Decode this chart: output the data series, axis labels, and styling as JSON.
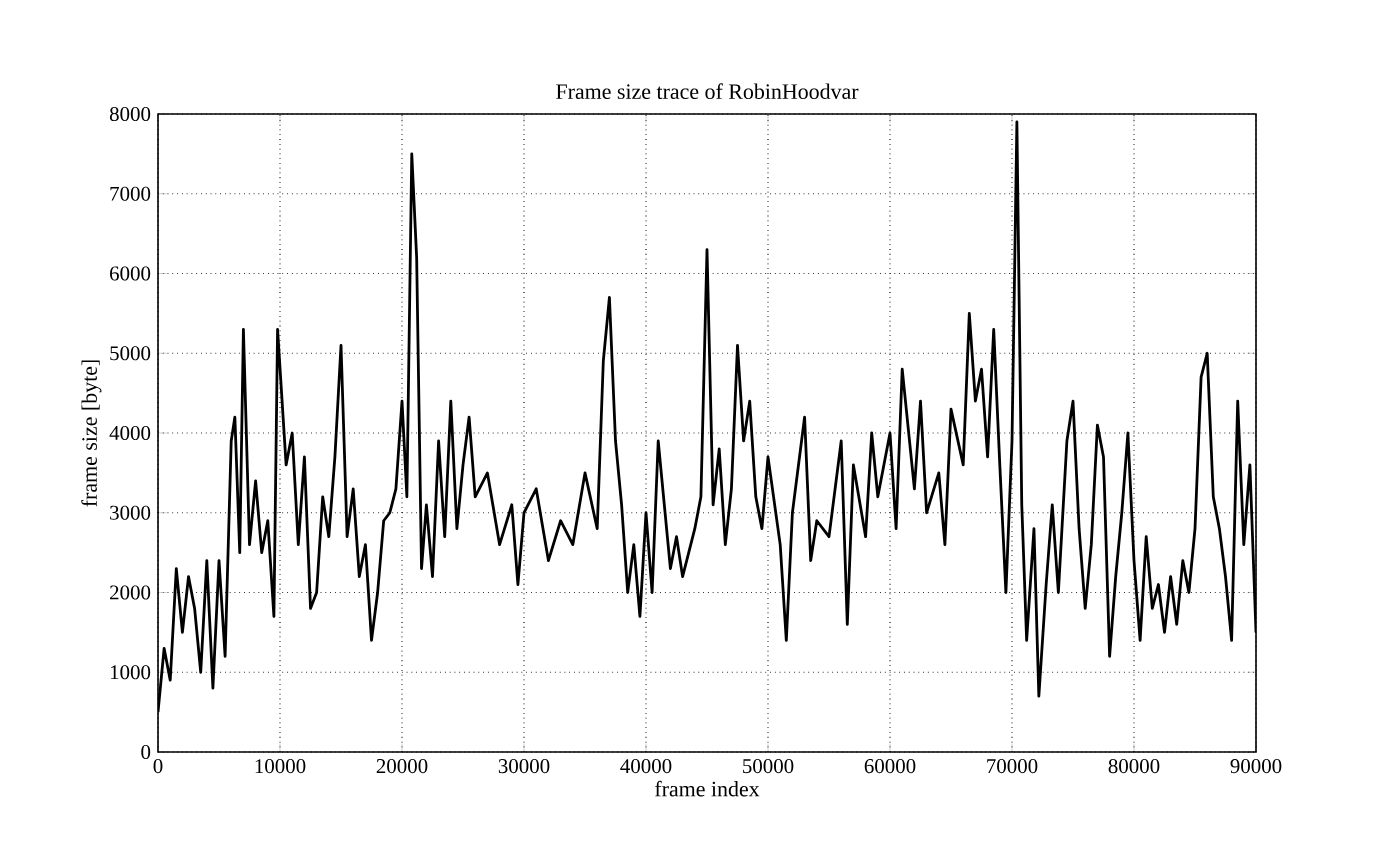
{
  "chart_data": {
    "type": "line",
    "title": "Frame size trace of RobinHoodvar",
    "xlabel": "frame index",
    "ylabel": "frame size [byte]",
    "xlim": [
      0,
      90000
    ],
    "ylim": [
      0,
      8000
    ],
    "xticks": [
      0,
      10000,
      20000,
      30000,
      40000,
      50000,
      60000,
      70000,
      80000,
      90000
    ],
    "yticks": [
      0,
      1000,
      2000,
      3000,
      4000,
      5000,
      6000,
      7000,
      8000
    ],
    "grid": true,
    "marker": "none",
    "line_style": "solid",
    "series": [
      {
        "color": "#000000",
        "x": [
          0,
          500,
          1000,
          1500,
          2000,
          2500,
          3000,
          3500,
          4000,
          4500,
          5000,
          5500,
          6000,
          6300,
          6700,
          7000,
          7500,
          8000,
          8500,
          9000,
          9500,
          9800,
          10500,
          11000,
          11500,
          12000,
          12500,
          13000,
          13500,
          14000,
          14500,
          15000,
          15500,
          16000,
          16500,
          17000,
          17500,
          18000,
          18500,
          19000,
          19500,
          20000,
          20400,
          20800,
          21200,
          21600,
          22000,
          22500,
          23000,
          23500,
          24000,
          24500,
          25000,
          25500,
          26000,
          27000,
          28000,
          29000,
          29500,
          30000,
          31000,
          32000,
          33000,
          34000,
          35000,
          36000,
          36500,
          37000,
          37500,
          38000,
          38500,
          39000,
          39500,
          40000,
          40500,
          41000,
          42000,
          42500,
          43000,
          44000,
          44500,
          45000,
          45500,
          46000,
          46500,
          47000,
          47500,
          48000,
          48500,
          49000,
          49500,
          50000,
          51000,
          51500,
          52000,
          53000,
          53500,
          54000,
          55000,
          56000,
          56500,
          57000,
          58000,
          58500,
          59000,
          60000,
          60500,
          61000,
          62000,
          62500,
          63000,
          64000,
          64500,
          65000,
          66000,
          66500,
          67000,
          67500,
          68000,
          68500,
          69000,
          69500,
          70000,
          70400,
          70800,
          71200,
          71800,
          72200,
          72800,
          73300,
          73800,
          74500,
          75000,
          75500,
          76000,
          76500,
          77000,
          77500,
          78000,
          78500,
          79000,
          79500,
          80000,
          80500,
          81000,
          81500,
          82000,
          82500,
          83000,
          83500,
          84000,
          84500,
          85000,
          85500,
          86000,
          86500,
          87000,
          87500,
          88000,
          88500,
          89000,
          89500,
          90000
        ],
        "values": [
          500,
          1300,
          900,
          2300,
          1500,
          2200,
          1800,
          1000,
          2400,
          800,
          2400,
          1200,
          3900,
          4200,
          2500,
          5300,
          2600,
          3400,
          2500,
          2900,
          1700,
          5300,
          3600,
          4000,
          2600,
          3700,
          1800,
          2000,
          3200,
          2700,
          3700,
          5100,
          2700,
          3300,
          2200,
          2600,
          1400,
          2000,
          2900,
          3000,
          3300,
          4400,
          3200,
          7500,
          6200,
          2300,
          3100,
          2200,
          3900,
          2700,
          4400,
          2800,
          3600,
          4200,
          3200,
          3500,
          2600,
          3100,
          2100,
          3000,
          3300,
          2400,
          2900,
          2600,
          3500,
          2800,
          4900,
          5700,
          3900,
          3100,
          2000,
          2600,
          1700,
          3000,
          2000,
          3900,
          2300,
          2700,
          2200,
          2800,
          3200,
          6300,
          3100,
          3800,
          2600,
          3300,
          5100,
          3900,
          4400,
          3200,
          2800,
          3700,
          2600,
          1400,
          3000,
          4200,
          2400,
          2900,
          2700,
          3900,
          1600,
          3600,
          2700,
          4000,
          3200,
          4000,
          2800,
          4800,
          3300,
          4400,
          3000,
          3500,
          2600,
          4300,
          3600,
          5500,
          4400,
          4800,
          3700,
          5300,
          3600,
          2000,
          3900,
          7900,
          3100,
          1400,
          2800,
          700,
          2100,
          3100,
          2000,
          3900,
          4400,
          2800,
          1800,
          2600,
          4100,
          3700,
          1200,
          2200,
          3000,
          4000,
          2400,
          1400,
          2700,
          1800,
          2100,
          1500,
          2200,
          1600,
          2400,
          2000,
          2800,
          4700,
          5000,
          3200,
          2800,
          2200,
          1400,
          4400,
          2600,
          3600,
          1500
        ]
      }
    ]
  }
}
